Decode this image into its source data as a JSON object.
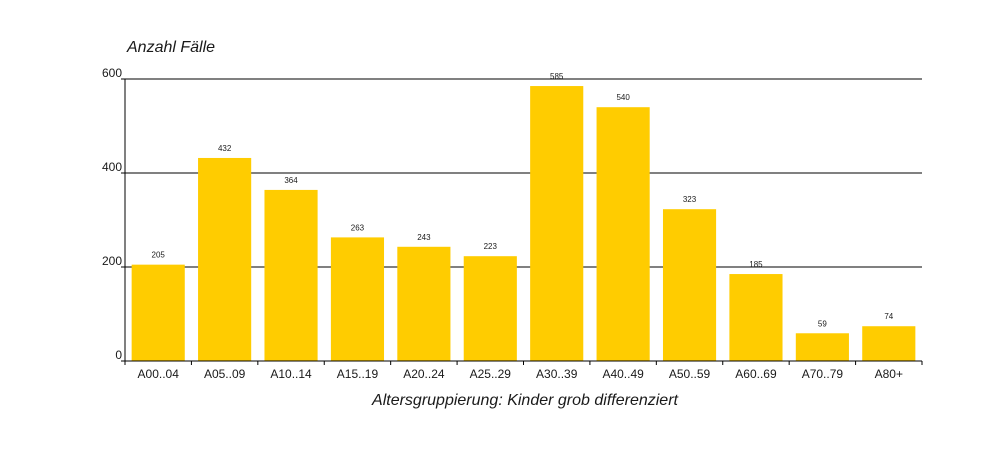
{
  "chart_data": {
    "type": "bar",
    "ylabel": "Anzahl Fälle",
    "xlabel": "Altersgruppierung: Kinder grob differenziert",
    "categories": [
      "A00..04",
      "A05..09",
      "A10..14",
      "A15..19",
      "A20..24",
      "A25..29",
      "A30..39",
      "A40..49",
      "A50..59",
      "A60..69",
      "A70..79",
      "A80+"
    ],
    "values": [
      205,
      432,
      364,
      263,
      243,
      223,
      585,
      540,
      323,
      185,
      59,
      74
    ],
    "data_labels": [
      "205",
      "432",
      "364",
      "263",
      "243",
      "223",
      "585",
      "540",
      "323",
      "185",
      "59",
      "74"
    ],
    "ylim": [
      0,
      600
    ],
    "yticks": [
      0,
      200,
      400,
      600
    ],
    "ytick_labels": [
      "0",
      "200",
      "400",
      "600"
    ],
    "grid": true,
    "legend": "none",
    "bar_color": "#FFCC00",
    "grid_color": "#000000"
  }
}
